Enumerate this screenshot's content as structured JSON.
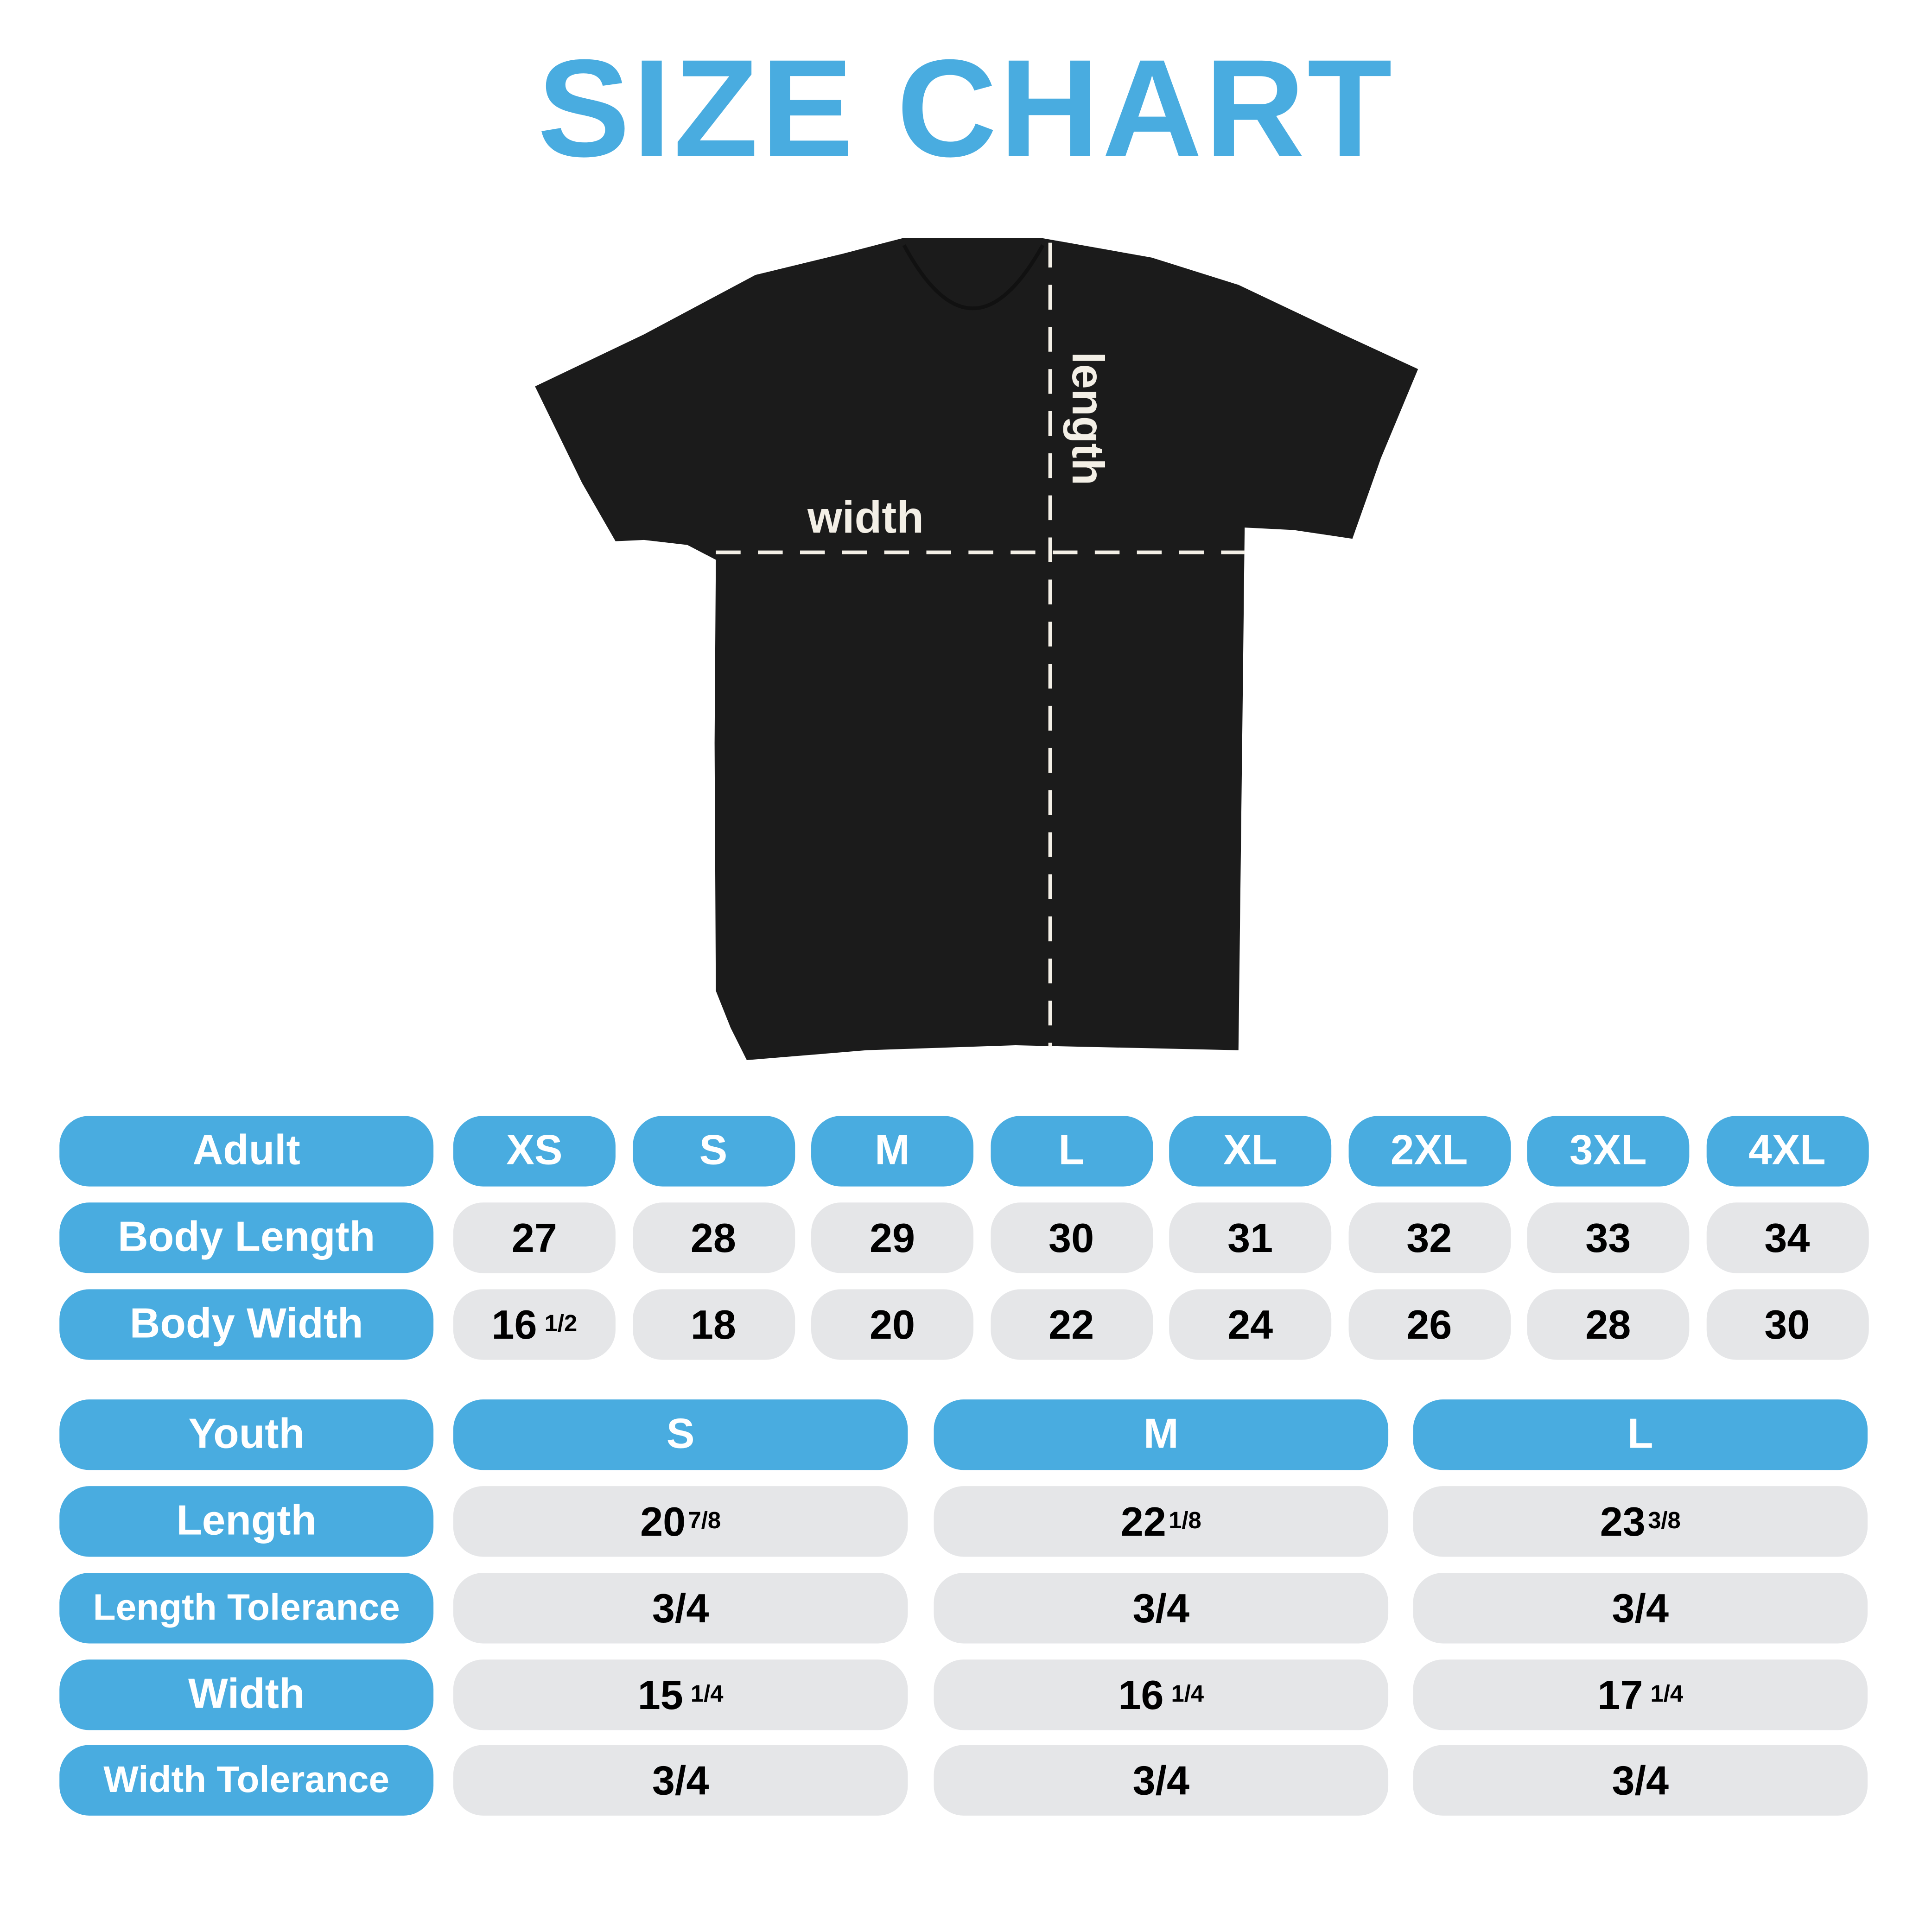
{
  "title": "SIZE CHART",
  "colors": {
    "accent": "#49ACE0",
    "cell": "#E5E6E8",
    "shirt": "#1b1b1b",
    "annotation": "#f3efe6"
  },
  "diagram": {
    "width_label": "width",
    "length_label": "length"
  },
  "adult": {
    "header": "Adult",
    "sizes": [
      "XS",
      "S",
      "M",
      "L",
      "XL",
      "2XL",
      "3XL",
      "4XL"
    ],
    "rows": [
      {
        "label": "Body Length",
        "values": [
          {
            "whole": "27",
            "frac": ""
          },
          {
            "whole": "28",
            "frac": ""
          },
          {
            "whole": "29",
            "frac": ""
          },
          {
            "whole": "30",
            "frac": ""
          },
          {
            "whole": "31",
            "frac": ""
          },
          {
            "whole": "32",
            "frac": ""
          },
          {
            "whole": "33",
            "frac": ""
          },
          {
            "whole": "34",
            "frac": ""
          }
        ]
      },
      {
        "label": "Body Width",
        "values": [
          {
            "whole": "16",
            "frac": "1/2"
          },
          {
            "whole": "18",
            "frac": ""
          },
          {
            "whole": "20",
            "frac": ""
          },
          {
            "whole": "22",
            "frac": ""
          },
          {
            "whole": "24",
            "frac": ""
          },
          {
            "whole": "26",
            "frac": ""
          },
          {
            "whole": "28",
            "frac": ""
          },
          {
            "whole": "30",
            "frac": ""
          }
        ]
      }
    ]
  },
  "youth": {
    "header": "Youth",
    "sizes": [
      "S",
      "M",
      "L"
    ],
    "rows": [
      {
        "label": "Length",
        "values": [
          {
            "whole": "20",
            "frac": "7/8"
          },
          {
            "whole": "22",
            "frac": "1/8"
          },
          {
            "whole": "23",
            "frac": "3/8"
          }
        ]
      },
      {
        "label": "Length Tolerance",
        "values": [
          {
            "whole": "3/4",
            "frac": ""
          },
          {
            "whole": "3/4",
            "frac": ""
          },
          {
            "whole": "3/4",
            "frac": ""
          }
        ]
      },
      {
        "label": "Width",
        "values": [
          {
            "whole": "15",
            "frac": "1/4"
          },
          {
            "whole": "16",
            "frac": "1/4"
          },
          {
            "whole": "17",
            "frac": "1/4"
          }
        ]
      },
      {
        "label": "Width Tolerance",
        "values": [
          {
            "whole": "3/4",
            "frac": ""
          },
          {
            "whole": "3/4",
            "frac": ""
          },
          {
            "whole": "3/4",
            "frac": ""
          }
        ]
      }
    ]
  }
}
